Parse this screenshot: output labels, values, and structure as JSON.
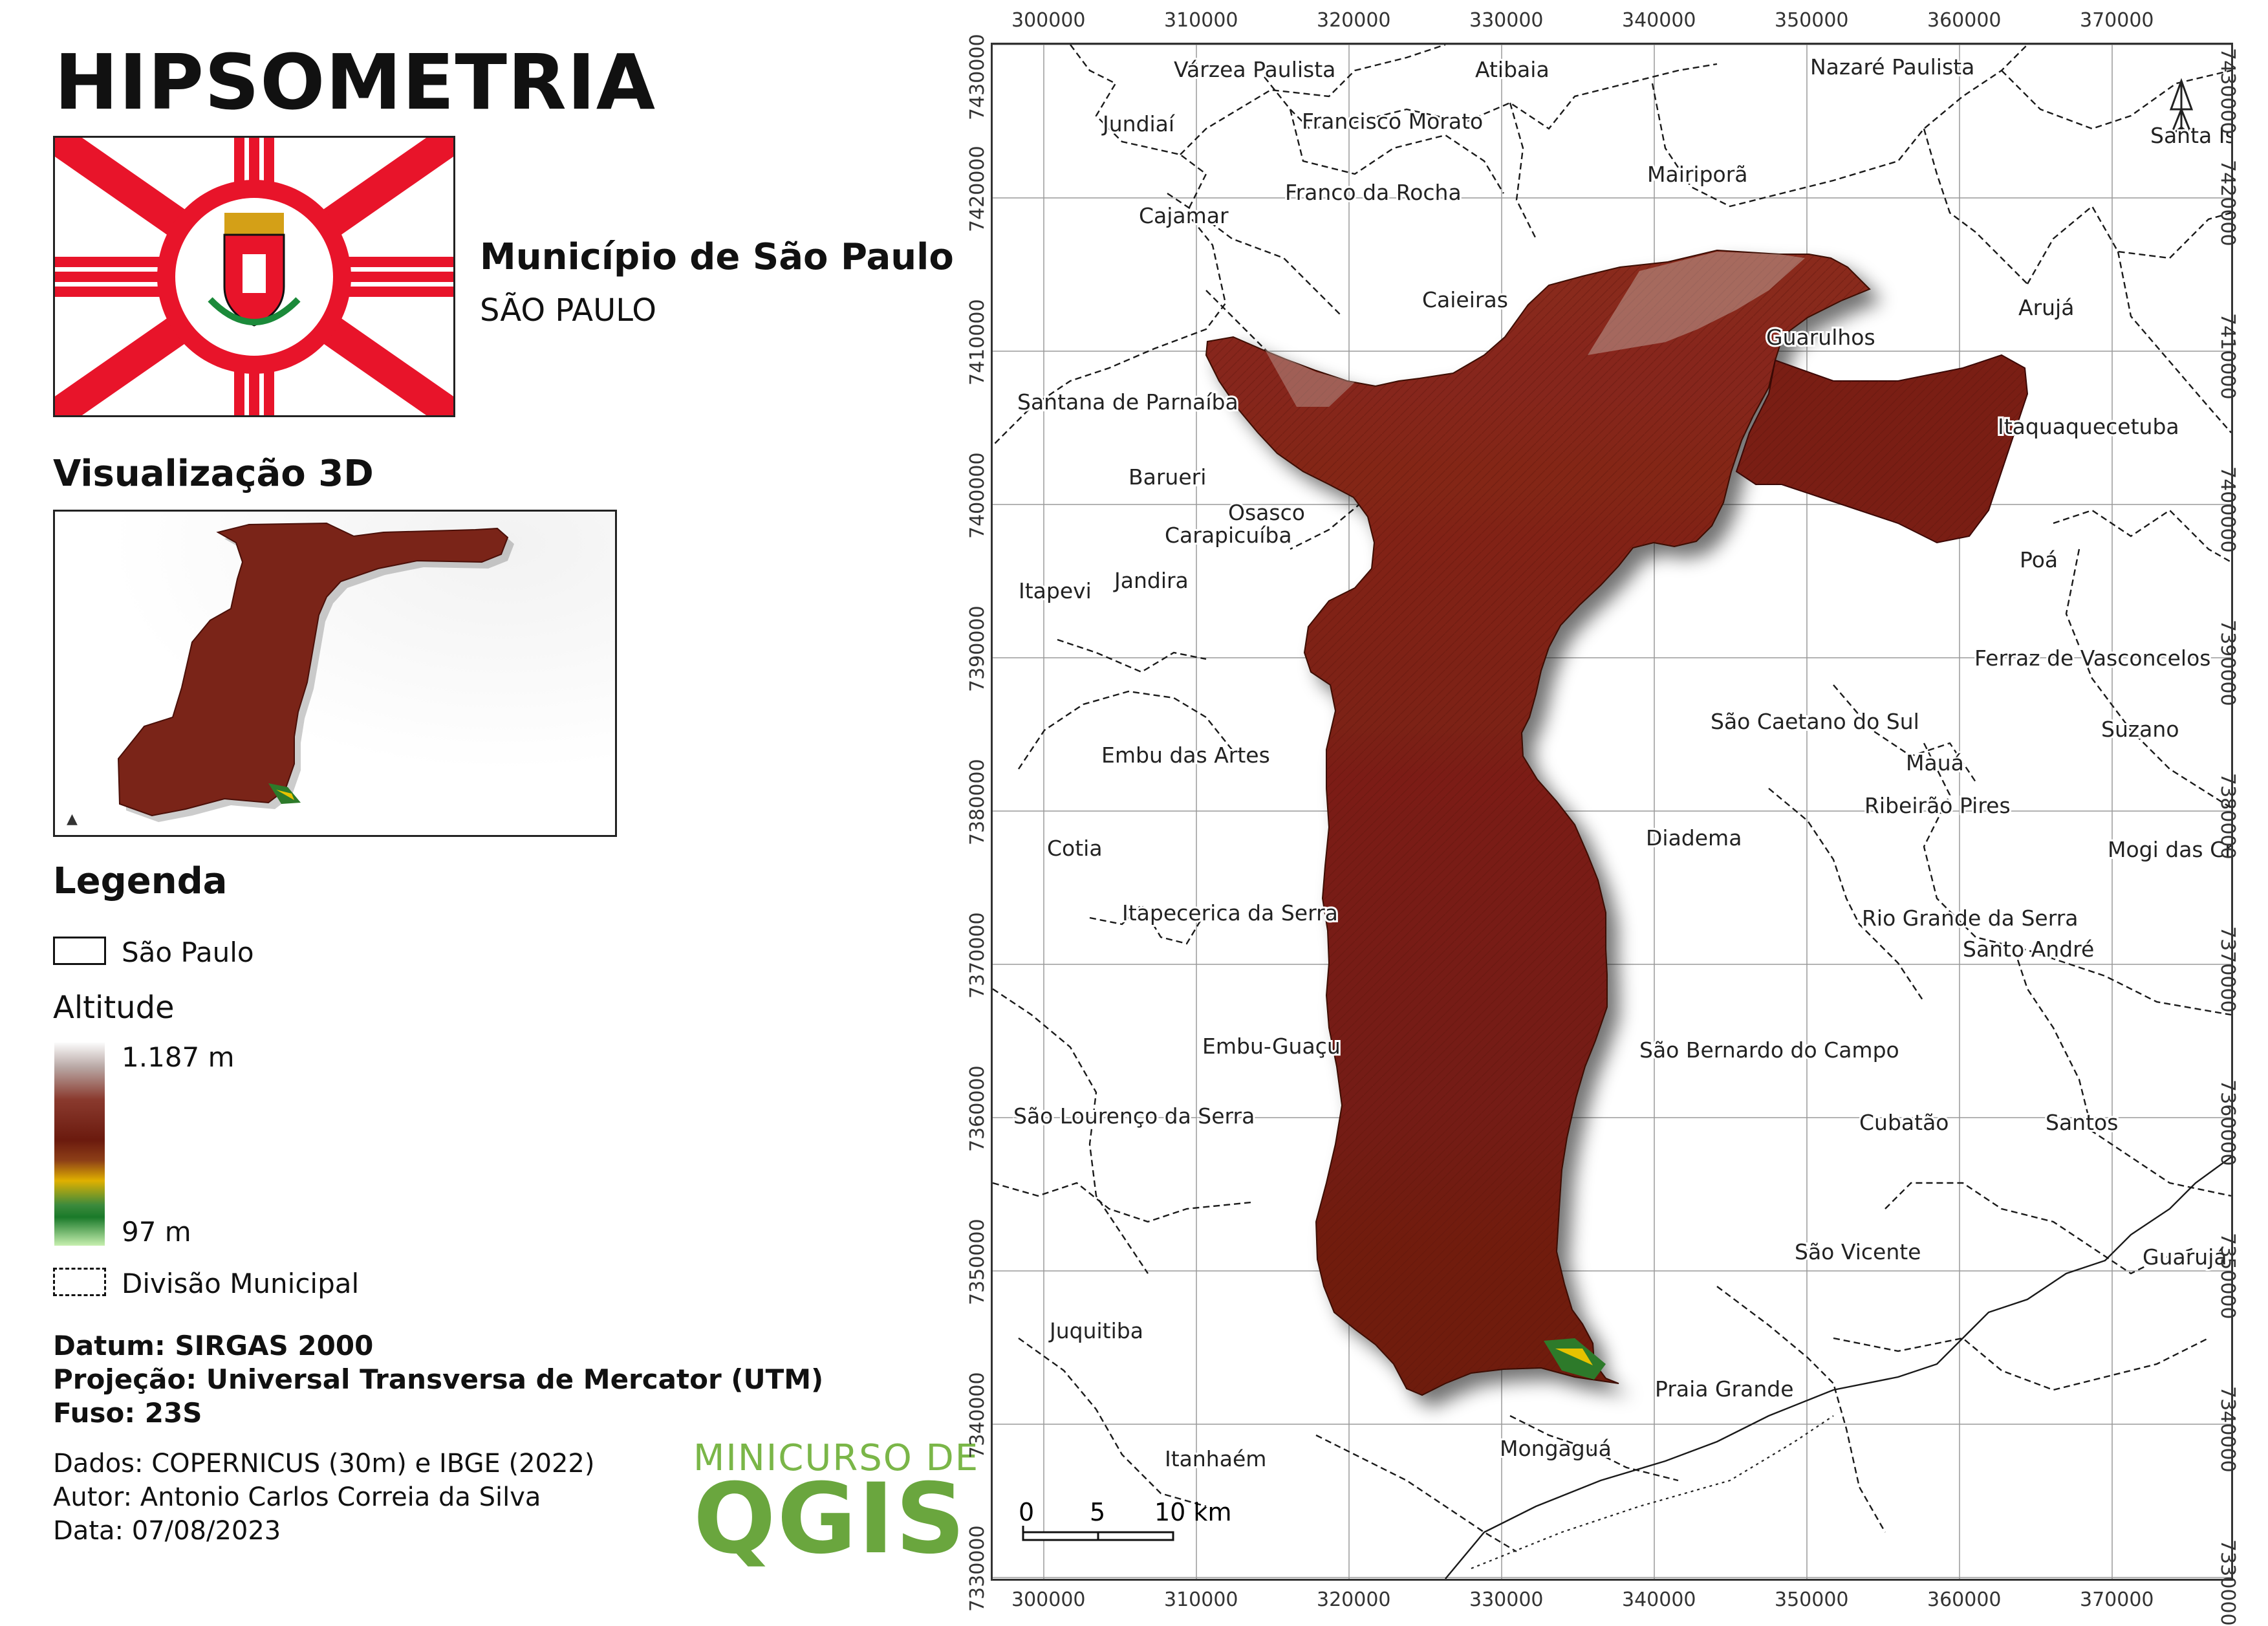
{
  "title": "HIPSOMETRIA",
  "municipality": {
    "name": "Município de São Paulo",
    "state": "SÃO PAULO"
  },
  "view3d_heading": "Visualização 3D",
  "legend": {
    "heading": "Legenda",
    "boundary_label": "São Paulo",
    "altitude_label": "Altitude",
    "altitude_max": "1.187 m",
    "altitude_min": "97 m",
    "division_label": "Divisão Municipal"
  },
  "meta": {
    "datum": "Datum: SIRGAS 2000",
    "projection": "Projeção: Universal Transversa de Mercator (UTM)",
    "zone": "Fuso: 23S",
    "data_source": "Dados: COPERNICUS (30m) e IBGE (2022)",
    "author": "Autor: Antonio Carlos Correia da Silva",
    "date": "Data: 07/08/2023"
  },
  "logo": {
    "line1": "MINICURSO DE",
    "line2": "QGIS"
  },
  "map": {
    "x_ticks": [
      "300000",
      "310000",
      "320000",
      "330000",
      "340000",
      "350000",
      "360000",
      "370000"
    ],
    "y_ticks": [
      "7430000",
      "7420000",
      "7410000",
      "7400000",
      "7390000",
      "7380000",
      "7370000",
      "7360000",
      "7350000",
      "7340000",
      "7330000"
    ],
    "scale": {
      "labels": [
        "0",
        "5",
        "10 km"
      ]
    },
    "north_icon": "north-arrow-icon",
    "places": [
      "Várzea Paulista",
      "Atibaia",
      "Nazaré Paulista",
      "Jundiaí",
      "Francisco Morato",
      "Santa Isabel",
      "Mairiporã",
      "Franco da Rocha",
      "Cajamar",
      "Caieiras",
      "Arujá",
      "Guarulhos",
      "Santana de Parnaíba",
      "Itaquaquecetuba",
      "Barueri",
      "Osasco",
      "Carapicuíba",
      "Poá",
      "Jandira",
      "Itapevi",
      "Ferraz de Vasconcelos",
      "Suzano",
      "São Caetano do Sul",
      "Embu das Artes",
      "Mauá",
      "Ribeirão Pires",
      "Diadema",
      "Cotia",
      "Mogi das Cruzes",
      "Itapecerica da Serra",
      "Rio Grande da Serra",
      "Santo André",
      "Embu-Guaçu",
      "São Bernardo do Campo",
      "São Lourenço da Serra",
      "Cubatão",
      "Santos",
      "São Vicente",
      "Guarujá",
      "Juquitiba",
      "Praia Grande",
      "Itanhaém",
      "Mongaguá"
    ]
  },
  "colors": {
    "terrain": "#7a1e14",
    "flag_red": "#e8142a",
    "logo_green": "#6aa63e",
    "ramp": [
      "#fbfbfb",
      "#b9a8a5",
      "#8a3a2e",
      "#6b1a0e",
      "#e0b000",
      "#1a7a2a",
      "#c8f0b0"
    ]
  }
}
